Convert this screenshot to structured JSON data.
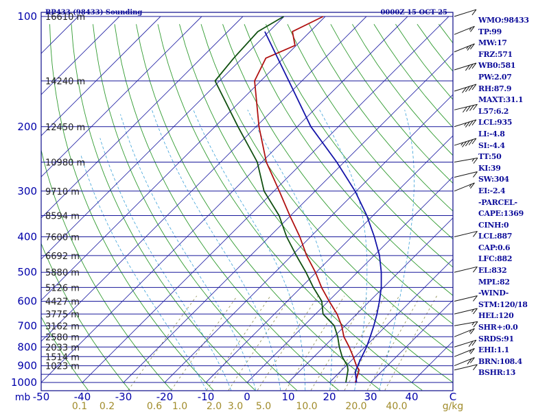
{
  "chart_data": {
    "type": "line",
    "title": "RP433 (98433) Sounding",
    "valid_time": "0000Z 15 OCT 25",
    "pressure_axis_label": "mb",
    "pressure_levels": [
      100,
      200,
      300,
      400,
      500,
      600,
      700,
      800,
      900,
      1000
    ],
    "height_labels": [
      {
        "p": 100,
        "label": "16610 m"
      },
      {
        "p": 150,
        "label": "14240 m"
      },
      {
        "p": 200,
        "label": "12450 m"
      },
      {
        "p": 250,
        "label": "10980 m"
      },
      {
        "p": 300,
        "label": "9710 m"
      },
      {
        "p": 350,
        "label": "8594 m"
      },
      {
        "p": 400,
        "label": "7600 m"
      },
      {
        "p": 450,
        "label": "6692 m"
      },
      {
        "p": 500,
        "label": "5880 m"
      },
      {
        "p": 550,
        "label": "5126 m"
      },
      {
        "p": 600,
        "label": "4427 m"
      },
      {
        "p": 650,
        "label": "3775 m"
      },
      {
        "p": 700,
        "label": "3162 m"
      },
      {
        "p": 750,
        "label": "2580 m"
      },
      {
        "p": 800,
        "label": "2033 m"
      },
      {
        "p": 850,
        "label": "1514 m"
      },
      {
        "p": 900,
        "label": "1023 m"
      }
    ],
    "temperature_axis": {
      "labels": [
        "-50",
        "-40",
        "-30",
        "-20",
        "-10",
        "0",
        "10",
        "20",
        "30",
        "40",
        "C"
      ],
      "range_c": [
        -50,
        50
      ]
    },
    "mixing_ratio_axis": {
      "labels": [
        "0.1",
        "0.2",
        "0.6",
        "1.0",
        "2.0",
        "3.0",
        "5.0",
        "10.0",
        "20.0",
        "40.0",
        "g/kg"
      ]
    },
    "series": [
      {
        "name": "temperature",
        "color": "#b01010",
        "points": [
          [
            1000,
            26.3
          ],
          [
            925,
            24.2
          ],
          [
            900,
            22.5
          ],
          [
            850,
            19.5
          ],
          [
            800,
            16.2
          ],
          [
            750,
            12.4
          ],
          [
            700,
            9.2
          ],
          [
            650,
            5.2
          ],
          [
            600,
            0.2
          ],
          [
            550,
            -5.0
          ],
          [
            500,
            -10.2
          ],
          [
            450,
            -16.4
          ],
          [
            400,
            -22.6
          ],
          [
            350,
            -30.2
          ],
          [
            300,
            -38.7
          ],
          [
            250,
            -48.9
          ],
          [
            200,
            -59.3
          ],
          [
            150,
            -71.5
          ],
          [
            130,
            -74.3
          ],
          [
            120,
            -70.3
          ],
          [
            110,
            -74.3
          ],
          [
            100,
            -70.5
          ]
        ]
      },
      {
        "name": "dewpoint",
        "color": "#0f4f0f",
        "points": [
          [
            1000,
            24.0
          ],
          [
            925,
            21.5
          ],
          [
            900,
            20.3
          ],
          [
            850,
            16.8
          ],
          [
            800,
            13.8
          ],
          [
            750,
            10.9
          ],
          [
            700,
            7.4
          ],
          [
            650,
            1.8
          ],
          [
            600,
            -1.6
          ],
          [
            550,
            -7.0
          ],
          [
            500,
            -12.5
          ],
          [
            450,
            -18.9
          ],
          [
            400,
            -25.8
          ],
          [
            350,
            -32.8
          ],
          [
            300,
            -42.4
          ],
          [
            250,
            -51.1
          ],
          [
            200,
            -64.4
          ],
          [
            150,
            -81.1
          ],
          [
            130,
            -82.1
          ],
          [
            110,
            -82.7
          ],
          [
            100,
            -80.1
          ]
        ]
      },
      {
        "name": "parcel",
        "color": "#1414a8",
        "points": [
          [
            1000,
            26.6
          ],
          [
            935,
            23.7
          ],
          [
            900,
            22.8
          ],
          [
            850,
            21.6
          ],
          [
            800,
            20.4
          ],
          [
            750,
            18.8
          ],
          [
            700,
            17.0
          ],
          [
            650,
            14.9
          ],
          [
            600,
            12.4
          ],
          [
            550,
            9.5
          ],
          [
            500,
            5.8
          ],
          [
            450,
            1.3
          ],
          [
            400,
            -4.5
          ],
          [
            350,
            -11.5
          ],
          [
            300,
            -20.3
          ],
          [
            250,
            -31.8
          ],
          [
            200,
            -46.7
          ],
          [
            150,
            -63.2
          ],
          [
            110,
            -81.0
          ]
        ]
      }
    ],
    "wind_barbs": [
      {
        "p": 100,
        "dir": 290,
        "kt": 10
      },
      {
        "p": 112,
        "dir": 300,
        "kt": 15
      },
      {
        "p": 125,
        "dir": 300,
        "kt": 25
      },
      {
        "p": 140,
        "dir": 290,
        "kt": 30
      },
      {
        "p": 160,
        "dir": 290,
        "kt": 40
      },
      {
        "p": 180,
        "dir": 280,
        "kt": 40
      },
      {
        "p": 200,
        "dir": 290,
        "kt": 35
      },
      {
        "p": 225,
        "dir": 290,
        "kt": 45
      },
      {
        "p": 250,
        "dir": 270,
        "kt": 15
      },
      {
        "p": 275,
        "dir": 260,
        "kt": 10
      },
      {
        "p": 300,
        "dir": 300,
        "kt": 15
      },
      {
        "p": 400,
        "dir": 260,
        "kt": 10
      },
      {
        "p": 500,
        "dir": 280,
        "kt": 10
      },
      {
        "p": 600,
        "dir": 260,
        "kt": 10
      },
      {
        "p": 650,
        "dir": 280,
        "kt": 15
      },
      {
        "p": 700,
        "dir": 270,
        "kt": 15
      },
      {
        "p": 750,
        "dir": 300,
        "kt": 15
      },
      {
        "p": 800,
        "dir": 290,
        "kt": 20
      },
      {
        "p": 850,
        "dir": 300,
        "kt": 15
      },
      {
        "p": 900,
        "dir": 300,
        "kt": 20
      },
      {
        "p": 925,
        "dir": 280,
        "kt": 10
      }
    ],
    "indices": [
      "WMO:98433",
      "TP:99",
      "MW:17",
      "FRZ:571",
      "WB0:581",
      "PW:2.07",
      "RH:87.9",
      "MAXT:31.1",
      "L57:6.2",
      "LCL:935",
      "LI:-4.8",
      "SI:-4.4",
      "TT:50",
      "KI:39",
      "SW:304",
      "EI:-2.4",
      "-PARCEL-",
      "CAPE:1369",
      "CINH:0",
      "LCL:887",
      "CAP:0.6",
      "LFC:882",
      "EL:832",
      "MPL:82",
      "-WIND-",
      "STM:120/18",
      "HEL:120",
      "SHR+:0.0",
      "SRDS:91",
      "EHI:1.1",
      "BRN:108.4",
      "BSHR:13"
    ]
  },
  "colors": {
    "frame": "#0a0a88",
    "isobar": "#16169a",
    "isotherm": "#2b2ba8",
    "dry_adiabat": "#2f9a2f",
    "moist_adiabat": "#3aa0d8",
    "mixing_ratio": "#8a8a4a",
    "axis_text": "#0000aa",
    "mixing_text": "#a08b2a",
    "title_text": "#0d0d9a"
  }
}
